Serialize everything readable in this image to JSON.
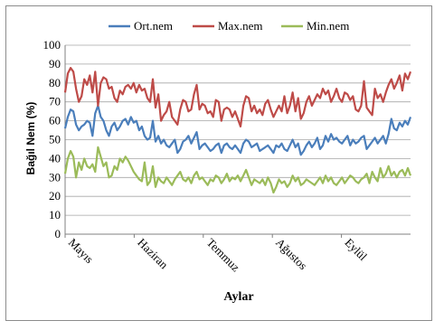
{
  "chart_data": {
    "type": "line",
    "title": "",
    "xlabel": "Aylar",
    "ylabel": "Bağıl Nem (%)",
    "ylim": [
      0,
      100
    ],
    "yticks": [
      0,
      10,
      20,
      30,
      40,
      50,
      60,
      70,
      80,
      90,
      100
    ],
    "x_tick_labels": [
      "Mayıs",
      "Haziran",
      "Temmuz",
      "Ağustos",
      "Eylül"
    ],
    "grid": "horizontal",
    "legend_position": "top",
    "series": [
      {
        "name": "Ort.nem",
        "color": "#4a7ebb",
        "values": [
          56,
          62,
          66,
          65,
          58,
          55,
          57,
          58,
          60,
          59,
          52,
          64,
          68,
          62,
          60,
          55,
          52,
          57,
          59,
          55,
          57,
          60,
          61,
          58,
          62,
          59,
          60,
          55,
          57,
          52,
          50,
          51,
          60,
          49,
          52,
          48,
          50,
          47,
          46,
          48,
          50,
          43,
          45,
          49,
          50,
          52,
          48,
          51,
          54,
          45,
          47,
          48,
          46,
          44,
          45,
          47,
          48,
          43,
          47,
          48,
          46,
          45,
          47,
          45,
          43,
          48,
          50,
          49,
          46,
          47,
          48,
          44,
          45,
          46,
          47,
          45,
          43,
          47,
          46,
          48,
          45,
          44,
          47,
          50,
          46,
          48,
          42,
          44,
          47,
          49,
          46,
          48,
          51,
          45,
          47,
          52,
          49,
          53,
          50,
          51,
          49,
          48,
          50,
          52,
          47,
          50,
          48,
          49,
          51,
          52,
          45,
          47,
          49,
          51,
          48,
          50,
          52,
          48,
          53,
          61,
          56,
          55,
          59,
          57,
          60,
          58,
          62
        ]
      },
      {
        "name": "Max.nem",
        "color": "#be4b48",
        "values": [
          75,
          85,
          88,
          86,
          77,
          70,
          73,
          82,
          79,
          84,
          75,
          86,
          68,
          80,
          83,
          82,
          77,
          78,
          72,
          70,
          76,
          74,
          78,
          79,
          77,
          80,
          75,
          79,
          76,
          77,
          72,
          70,
          82,
          67,
          74,
          60,
          63,
          65,
          70,
          62,
          60,
          58,
          66,
          71,
          70,
          65,
          66,
          74,
          79,
          66,
          69,
          68,
          64,
          65,
          62,
          71,
          70,
          60,
          66,
          67,
          66,
          62,
          65,
          61,
          57,
          68,
          73,
          72,
          65,
          68,
          64,
          66,
          63,
          69,
          71,
          66,
          62,
          65,
          68,
          65,
          73,
          64,
          68,
          75,
          65,
          72,
          61,
          64,
          70,
          73,
          68,
          71,
          74,
          72,
          77,
          74,
          76,
          70,
          73,
          77,
          72,
          70,
          75,
          74,
          71,
          73,
          66,
          65,
          68,
          81,
          67,
          65,
          63,
          77,
          72,
          74,
          70,
          75,
          79,
          82,
          77,
          80,
          84,
          76,
          85,
          82,
          86
        ]
      },
      {
        "name": "Min.nem",
        "color": "#9bbb59",
        "values": [
          32,
          40,
          44,
          41,
          30,
          38,
          34,
          40,
          36,
          35,
          37,
          33,
          46,
          41,
          36,
          38,
          30,
          31,
          36,
          34,
          40,
          38,
          41,
          39,
          36,
          33,
          31,
          29,
          28,
          38,
          26,
          28,
          36,
          25,
          30,
          28,
          27,
          30,
          28,
          26,
          29,
          31,
          33,
          29,
          28,
          30,
          27,
          31,
          33,
          29,
          30,
          28,
          26,
          29,
          28,
          31,
          30,
          27,
          29,
          32,
          28,
          30,
          29,
          31,
          28,
          31,
          34,
          30,
          26,
          29,
          28,
          27,
          29,
          26,
          30,
          27,
          22,
          25,
          29,
          27,
          28,
          25,
          27,
          31,
          28,
          30,
          26,
          27,
          29,
          28,
          27,
          26,
          28,
          30,
          27,
          31,
          28,
          30,
          27,
          26,
          28,
          30,
          27,
          29,
          31,
          30,
          28,
          27,
          29,
          30,
          32,
          27,
          33,
          30,
          28,
          35,
          30,
          32,
          36,
          31,
          33,
          30,
          33,
          34,
          31,
          35,
          31
        ]
      }
    ]
  }
}
